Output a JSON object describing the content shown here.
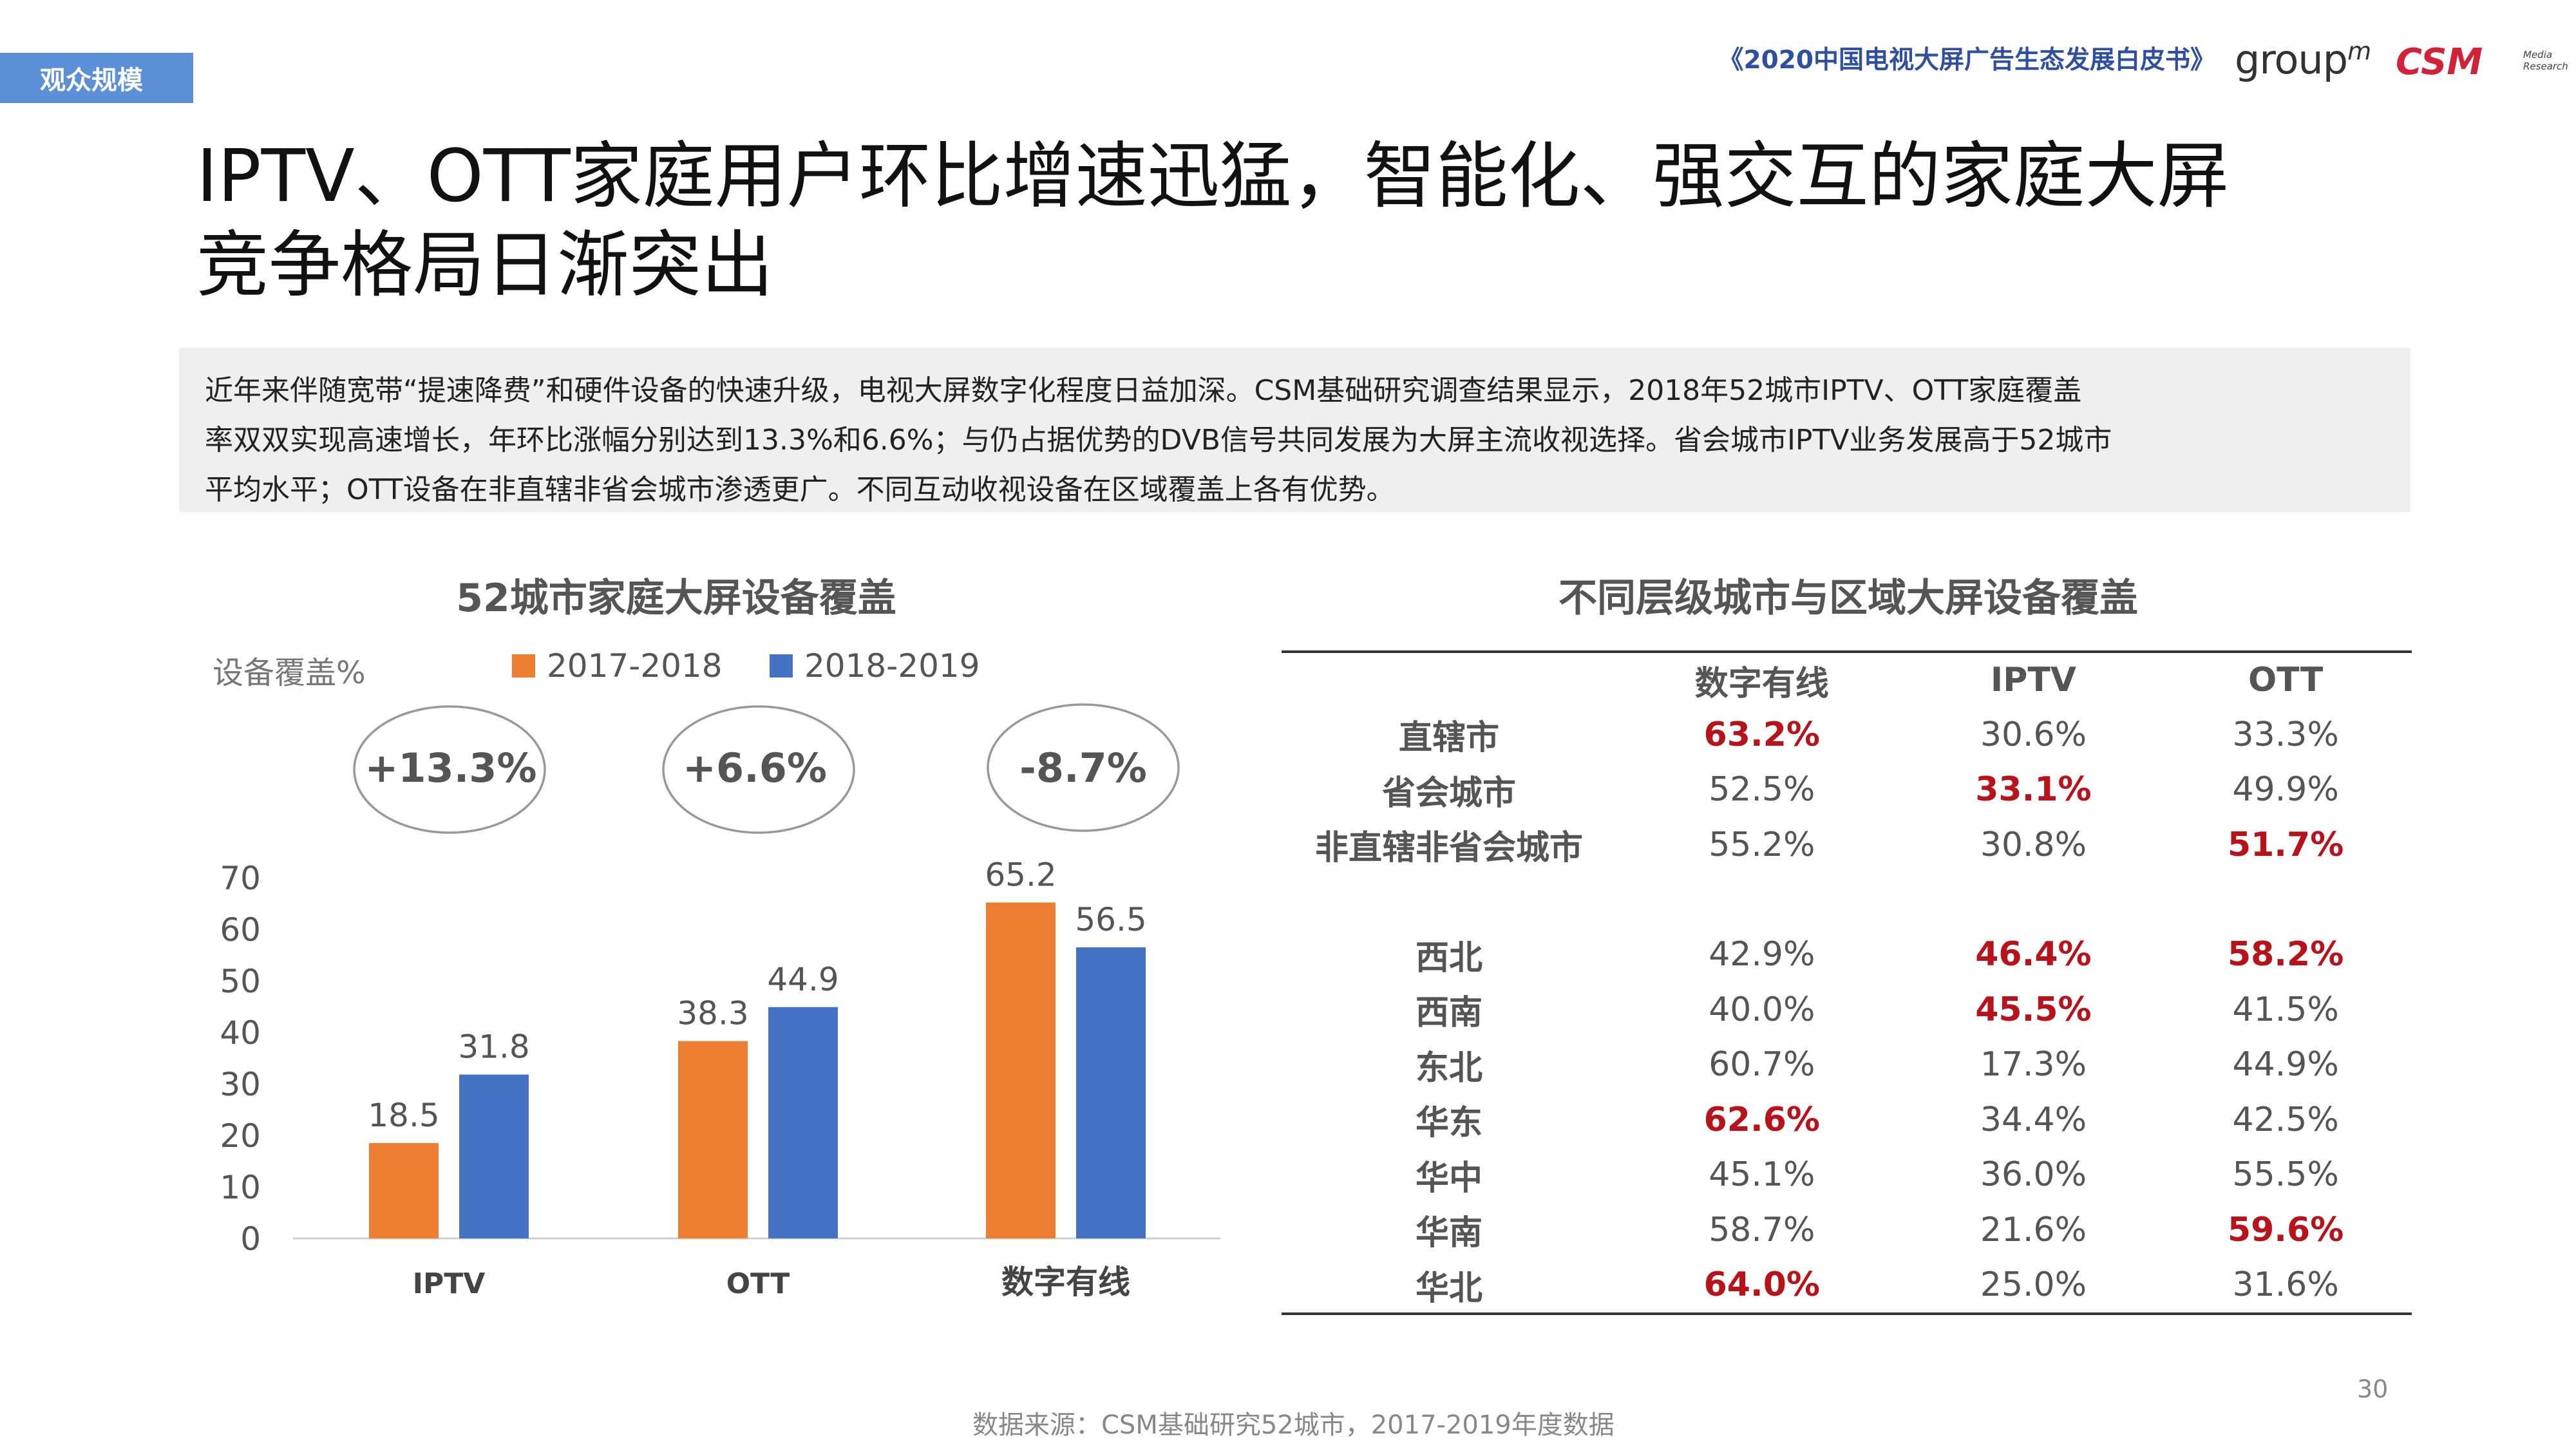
{
  "section_tag": "观众规模",
  "header": {
    "report_title": "《2020中国电视大屏广告生态发展白皮书》",
    "logo_groupm": "group",
    "logo_groupm_sup": "m",
    "logo_csm": "CSM",
    "logo_csm_sub1": "Media",
    "logo_csm_sub2": "Research"
  },
  "title": {
    "line1": "IPTV、OTT家庭用户环比增速迅猛，智能化、强交互的家庭大屏",
    "line2": "竞争格局日渐突出"
  },
  "intro": {
    "line1": "近年来伴随宽带“提速降费”和硬件设备的快速升级，电视大屏数字化程度日益加深。CSM基础研究调查结果显示，2018年52城市IPTV、OTT家庭覆盖",
    "line2": "率双双实现高速增长，年环比涨幅分别达到13.3%和6.6%；与仍占据优势的DVB信号共同发展为大屏主流收视选择。省会城市IPTV业务发展高于52城市",
    "line3": "平均水平；OTT设备在非直辖非省会城市渗透更广。不同互动收视设备在区域覆盖上各有优势。"
  },
  "chart_data": {
    "type": "bar",
    "title": "52城市家庭大屏设备覆盖",
    "ylabel": "设备覆盖%",
    "categories": [
      "IPTV",
      "OTT",
      "数字有线"
    ],
    "series": [
      {
        "name": "2017-2018",
        "values": [
          18.5,
          38.3,
          65.2
        ],
        "color": "#ed7d31"
      },
      {
        "name": "2018-2019",
        "values": [
          31.8,
          44.9,
          56.5
        ],
        "color": "#4472c4"
      }
    ],
    "ylim": [
      0,
      70
    ],
    "yticks": [
      0,
      10,
      20,
      30,
      40,
      50,
      60,
      70
    ],
    "annotations": [
      "+13.3%",
      "+6.6%",
      "-8.7%"
    ],
    "legend_position": "top"
  },
  "region_table": {
    "title": "不同层级城市与区域大屏设备覆盖",
    "columns": [
      "",
      "数字有线",
      "IPTV",
      "OTT"
    ],
    "groups": [
      {
        "rows": [
          {
            "label": "直辖市",
            "values": [
              "63.2%",
              "30.6%",
              "33.3%"
            ],
            "highlight": [
              true,
              false,
              false
            ]
          },
          {
            "label": "省会城市",
            "values": [
              "52.5%",
              "33.1%",
              "49.9%"
            ],
            "highlight": [
              false,
              true,
              false
            ]
          },
          {
            "label": "非直辖非省会城市",
            "values": [
              "55.2%",
              "30.8%",
              "51.7%"
            ],
            "highlight": [
              false,
              false,
              true
            ]
          }
        ]
      },
      {
        "rows": [
          {
            "label": "西北",
            "values": [
              "42.9%",
              "46.4%",
              "58.2%"
            ],
            "highlight": [
              false,
              true,
              true
            ]
          },
          {
            "label": "西南",
            "values": [
              "40.0%",
              "45.5%",
              "41.5%"
            ],
            "highlight": [
              false,
              true,
              false
            ]
          },
          {
            "label": "东北",
            "values": [
              "60.7%",
              "17.3%",
              "44.9%"
            ],
            "highlight": [
              false,
              false,
              false
            ]
          },
          {
            "label": "华东",
            "values": [
              "62.6%",
              "34.4%",
              "42.5%"
            ],
            "highlight": [
              true,
              false,
              false
            ]
          },
          {
            "label": "华中",
            "values": [
              "45.1%",
              "36.0%",
              "55.5%"
            ],
            "highlight": [
              false,
              false,
              false
            ]
          },
          {
            "label": "华南",
            "values": [
              "58.7%",
              "21.6%",
              "59.6%"
            ],
            "highlight": [
              false,
              false,
              true
            ]
          },
          {
            "label": "华北",
            "values": [
              "64.0%",
              "25.0%",
              "31.6%"
            ],
            "highlight": [
              true,
              false,
              false
            ]
          }
        ]
      }
    ],
    "highlight_color": "#b8121b"
  },
  "page_number": "30",
  "source": "数据来源：CSM基础研究52城市，2017-2019年度数据"
}
